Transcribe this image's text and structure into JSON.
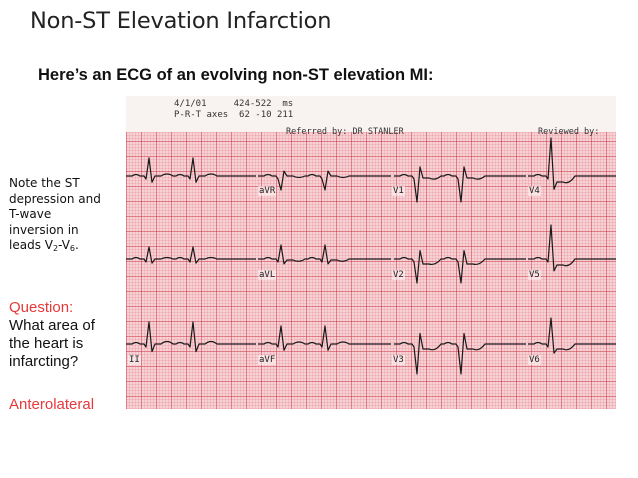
{
  "slide": {
    "title": "Non-ST Elevation Infarction",
    "subtitle": "Here’s an ECG of an evolving non-ST elevation MI:"
  },
  "ecg": {
    "header_line1": "4/1/01     424-522  ms",
    "header_line2": "P-R-T axes  62 -10 211",
    "referred_by": "Referred by: DR STANLER",
    "reviewed_by": "Reviewed by:",
    "leads": [
      "aVR",
      "V1",
      "V4",
      "aVL",
      "V2",
      "V5",
      "II",
      "aVF",
      "V3",
      "V6"
    ]
  },
  "note": {
    "line1": "Note the ST",
    "line2": "depression and",
    "line3": "T-wave",
    "line4": "inversion in",
    "line5_prefix": "leads V",
    "sub_a": "2",
    "dash": "-V",
    "sub_b": "6",
    "end": "."
  },
  "question": {
    "label": "Question:",
    "line1": "What area of",
    "line2": "the heart is",
    "line3": "infarcting?"
  },
  "answer": "Anterolateral",
  "colors": {
    "accent_red": "#e5393b",
    "ecg_grid": "#c8283c",
    "ecg_paper": "#f7d2d5"
  }
}
